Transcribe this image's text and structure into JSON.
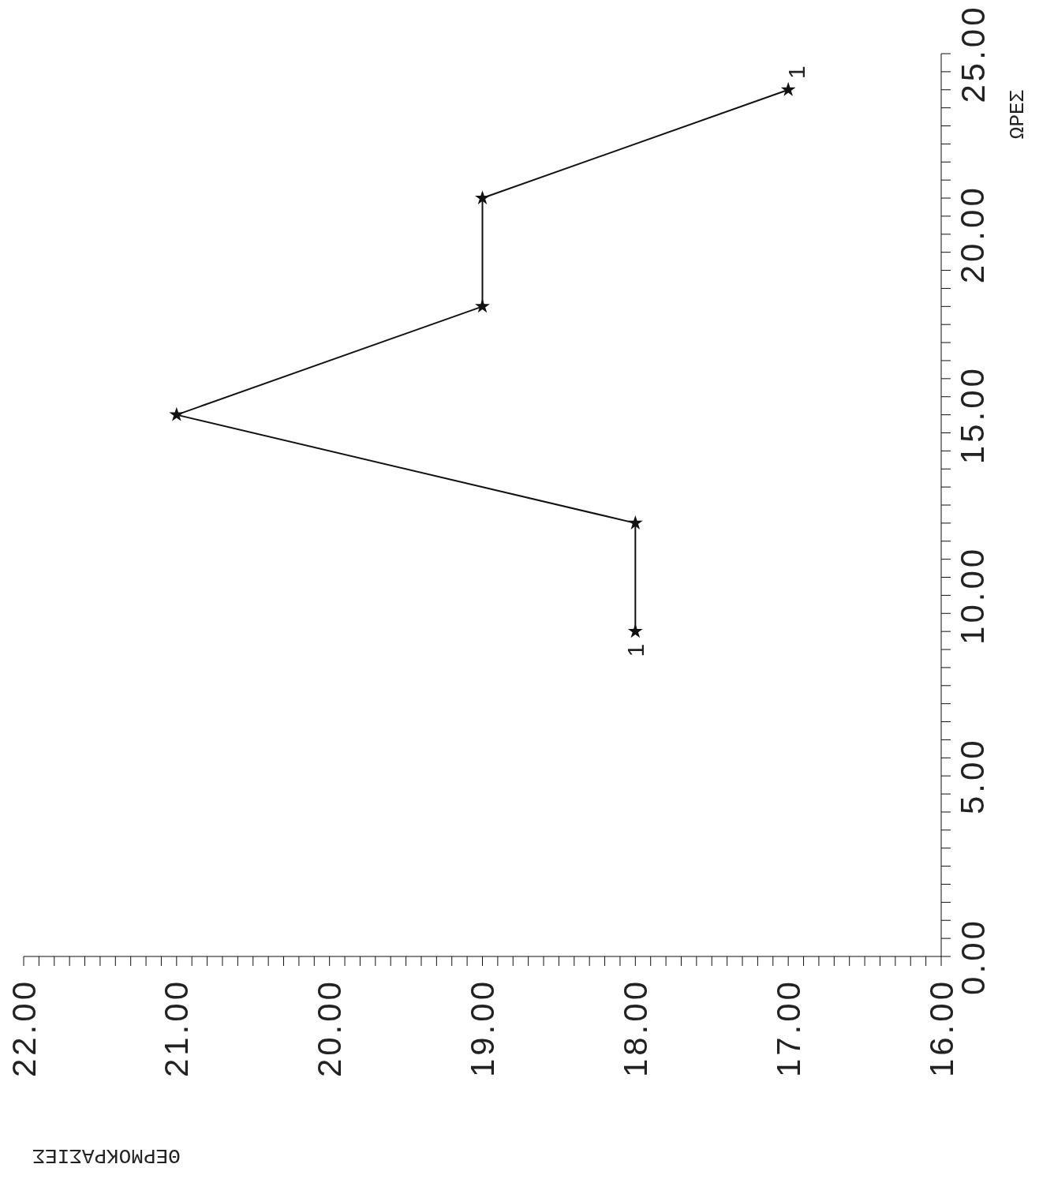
{
  "chart_data": {
    "type": "line",
    "xlabel": "ΘΕΡΜΟΚΡΑΣΙΕΣ",
    "ylabel": "ΩΡΕΣ",
    "x": [
      18,
      18,
      21,
      19,
      19,
      17
    ],
    "series": [
      {
        "color": "#111111",
        "values": [
          9,
          12,
          15,
          18,
          21,
          24
        ]
      }
    ],
    "marker": "star",
    "line_style": "solid",
    "annotations": [
      {
        "text": "1",
        "x": 18,
        "y": 9
      },
      {
        "text": "1",
        "x": 17,
        "y": 24
      }
    ],
    "ylim": [
      0,
      25
    ],
    "yticks": [
      {
        "value": 0,
        "label": "0.00"
      },
      {
        "value": 0.5,
        "label": null
      },
      {
        "value": 1,
        "label": null
      },
      {
        "value": 1.5,
        "label": null
      },
      {
        "value": 2,
        "label": null
      },
      {
        "value": 2.5,
        "label": null
      },
      {
        "value": 3,
        "label": null
      },
      {
        "value": 3.5,
        "label": null
      },
      {
        "value": 4,
        "label": null
      },
      {
        "value": 4.5,
        "label": null
      },
      {
        "value": 5,
        "label": "5.00"
      },
      {
        "value": 5.5,
        "label": null
      },
      {
        "value": 6,
        "label": null
      },
      {
        "value": 6.5,
        "label": null
      },
      {
        "value": 7,
        "label": null
      },
      {
        "value": 7.5,
        "label": null
      },
      {
        "value": 8,
        "label": null
      },
      {
        "value": 8.5,
        "label": null
      },
      {
        "value": 9,
        "label": null
      },
      {
        "value": 9.5,
        "label": null
      },
      {
        "value": 10,
        "label": "10.00"
      },
      {
        "value": 10.5,
        "label": null
      },
      {
        "value": 11,
        "label": null
      },
      {
        "value": 11.5,
        "label": null
      },
      {
        "value": 12,
        "label": null
      },
      {
        "value": 12.5,
        "label": null
      },
      {
        "value": 13,
        "label": null
      },
      {
        "value": 13.5,
        "label": null
      },
      {
        "value": 14,
        "label": null
      },
      {
        "value": 14.5,
        "label": null
      },
      {
        "value": 15,
        "label": "15.00"
      },
      {
        "value": 15.5,
        "label": null
      },
      {
        "value": 16,
        "label": null
      },
      {
        "value": 16.5,
        "label": null
      },
      {
        "value": 17,
        "label": null
      },
      {
        "value": 17.5,
        "label": null
      },
      {
        "value": 18,
        "label": null
      },
      {
        "value": 18.5,
        "label": null
      },
      {
        "value": 19,
        "label": null
      },
      {
        "value": 19.5,
        "label": null
      },
      {
        "value": 20,
        "label": "20.00"
      },
      {
        "value": 20.5,
        "label": null
      },
      {
        "value": 21,
        "label": null
      },
      {
        "value": 21.5,
        "label": null
      },
      {
        "value": 22,
        "label": null
      },
      {
        "value": 22.5,
        "label": null
      },
      {
        "value": 23,
        "label": null
      },
      {
        "value": 23.5,
        "label": null
      },
      {
        "value": 24,
        "label": null
      },
      {
        "value": 24.5,
        "label": null
      },
      {
        "value": 25,
        "label": "25.00"
      }
    ],
    "xlim": [
      22,
      16
    ],
    "xticks": [
      {
        "value": 16,
        "label": "16.00"
      },
      {
        "value": 16.1,
        "label": null
      },
      {
        "value": 16.2,
        "label": null
      },
      {
        "value": 16.3,
        "label": null
      },
      {
        "value": 16.4,
        "label": null
      },
      {
        "value": 16.5,
        "label": null
      },
      {
        "value": 16.6,
        "label": null
      },
      {
        "value": 16.7,
        "label": null
      },
      {
        "value": 16.8,
        "label": null
      },
      {
        "value": 16.9,
        "label": null
      },
      {
        "value": 17,
        "label": "17.00"
      },
      {
        "value": 17.1,
        "label": null
      },
      {
        "value": 17.2,
        "label": null
      },
      {
        "value": 17.3,
        "label": null
      },
      {
        "value": 17.4,
        "label": null
      },
      {
        "value": 17.5,
        "label": null
      },
      {
        "value": 17.6,
        "label": null
      },
      {
        "value": 17.7,
        "label": null
      },
      {
        "value": 17.8,
        "label": null
      },
      {
        "value": 17.9,
        "label": null
      },
      {
        "value": 18,
        "label": "18.00"
      },
      {
        "value": 18.1,
        "label": null
      },
      {
        "value": 18.2,
        "label": null
      },
      {
        "value": 18.3,
        "label": null
      },
      {
        "value": 18.4,
        "label": null
      },
      {
        "value": 18.5,
        "label": null
      },
      {
        "value": 18.6,
        "label": null
      },
      {
        "value": 18.7,
        "label": null
      },
      {
        "value": 18.8,
        "label": null
      },
      {
        "value": 18.9,
        "label": null
      },
      {
        "value": 19,
        "label": "19.00"
      },
      {
        "value": 19.1,
        "label": null
      },
      {
        "value": 19.2,
        "label": null
      },
      {
        "value": 19.3,
        "label": null
      },
      {
        "value": 19.4,
        "label": null
      },
      {
        "value": 19.5,
        "label": null
      },
      {
        "value": 19.6,
        "label": null
      },
      {
        "value": 19.7,
        "label": null
      },
      {
        "value": 19.8,
        "label": null
      },
      {
        "value": 19.9,
        "label": null
      },
      {
        "value": 20,
        "label": "20.00"
      },
      {
        "value": 20.1,
        "label": null
      },
      {
        "value": 20.2,
        "label": null
      },
      {
        "value": 20.3,
        "label": null
      },
      {
        "value": 20.4,
        "label": null
      },
      {
        "value": 20.5,
        "label": null
      },
      {
        "value": 20.6,
        "label": null
      },
      {
        "value": 20.7,
        "label": null
      },
      {
        "value": 20.8,
        "label": null
      },
      {
        "value": 20.9,
        "label": null
      },
      {
        "value": 21,
        "label": "21.00"
      },
      {
        "value": 21.1,
        "label": null
      },
      {
        "value": 21.2,
        "label": null
      },
      {
        "value": 21.3,
        "label": null
      },
      {
        "value": 21.4,
        "label": null
      },
      {
        "value": 21.5,
        "label": null
      },
      {
        "value": 21.6,
        "label": null
      },
      {
        "value": 21.7,
        "label": null
      },
      {
        "value": 21.8,
        "label": null
      },
      {
        "value": 21.9,
        "label": null
      },
      {
        "value": 22,
        "label": "22.00"
      }
    ]
  }
}
